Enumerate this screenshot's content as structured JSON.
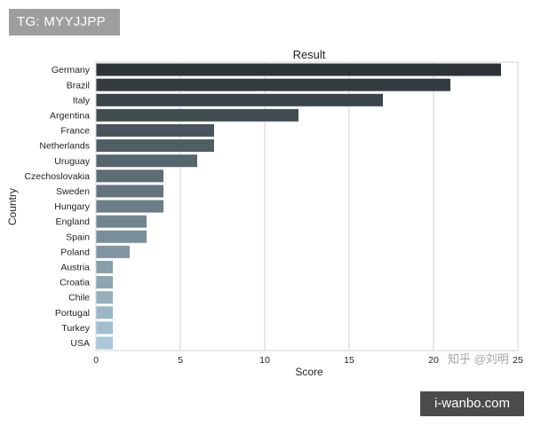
{
  "overlay": {
    "tag_text": "TG: MYYJJPP",
    "site_text": "i-wanbo.com",
    "watermark_text": "知乎 @刘明"
  },
  "chart_data": {
    "type": "bar",
    "orientation": "horizontal",
    "title": "Result",
    "xlabel": "Score",
    "ylabel": "Country",
    "categories": [
      "Germany",
      "Brazil",
      "Italy",
      "Argentina",
      "France",
      "Netherlands",
      "Uruguay",
      "Czechoslovakia",
      "Sweden",
      "Hungary",
      "England",
      "Spain",
      "Poland",
      "Austria",
      "Croatia",
      "Chile",
      "Portugal",
      "Turkey",
      "USA"
    ],
    "values": [
      24,
      21,
      17,
      12,
      7,
      7,
      6,
      4,
      4,
      4,
      3,
      3,
      2,
      1,
      1,
      1,
      1,
      1,
      1
    ],
    "xlim": [
      0,
      25
    ],
    "xticks": [
      0,
      5,
      10,
      15,
      20,
      25
    ],
    "grid": "vertical",
    "bar_color_gradient": [
      "#2d3438",
      "#a9c7d8"
    ]
  }
}
